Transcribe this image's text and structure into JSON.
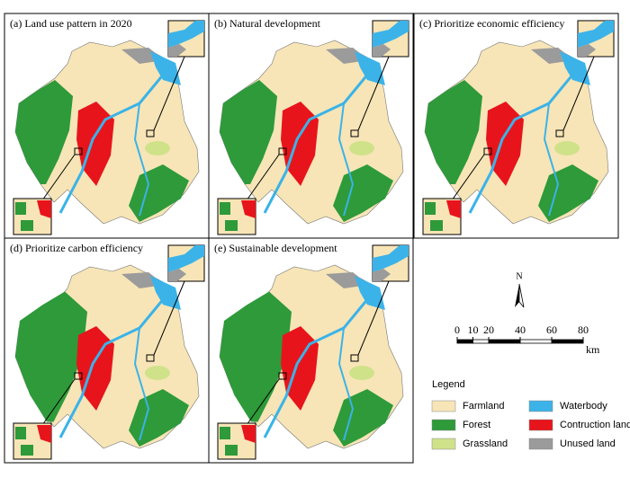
{
  "panels": [
    {
      "title": "(a) Land  use pattern in 2020"
    },
    {
      "title": "(b) Natural development"
    },
    {
      "title": "(c) Prioritize economic efficiency"
    },
    {
      "title": "(d) Prioritize carbon efficiency"
    },
    {
      "title": "(e) Sustainable development"
    }
  ],
  "north_arrow": {
    "label": "N"
  },
  "scale_bar": {
    "ticks": [
      0,
      10,
      20,
      40,
      60,
      80
    ],
    "unit": "km"
  },
  "legend": {
    "title": "Legend",
    "items": [
      {
        "label": "Farmland",
        "color": "#f7e5b7"
      },
      {
        "label": "Waterbody",
        "color": "#3bb3e8"
      },
      {
        "label": "Forest",
        "color": "#2e9a3a"
      },
      {
        "label": "Contruction land",
        "color": "#e8141b"
      },
      {
        "label": "Grassland",
        "color": "#cfe28a"
      },
      {
        "label": "Unused land",
        "color": "#9b9b9b"
      }
    ]
  }
}
